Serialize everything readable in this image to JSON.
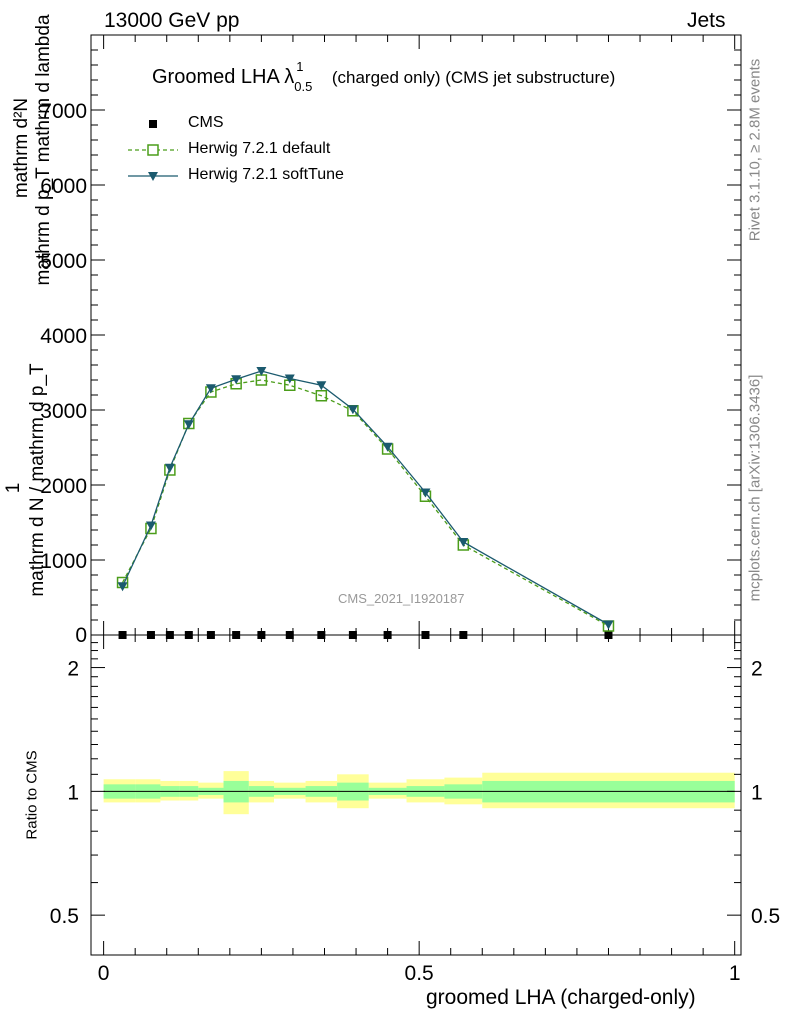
{
  "header": {
    "left": "13000 GeV pp",
    "right": "Jets"
  },
  "side": {
    "rivet": "Rivet 3.1.10, ≥ 2.8M events",
    "mcplots": "mcplots.cern.ch [arXiv:1306.3436]"
  },
  "chart_data": [
    {
      "type": "line",
      "title": "Groomed LHA λ",
      "title_sup": "1",
      "title_sub": "0.5",
      "title_suffix": "(charged only) (CMS jet substructure)",
      "ylabel_numerator": "mathrm d²N",
      "ylabel_denominator": "mathrm d p_T mathrm d lambda",
      "ylabel_front": "1",
      "ylabel_front_denominator": "mathrm d N / mathrm d p_T",
      "watermark": "CMS_2021_I1920187",
      "xlim": [
        -0.02,
        1.01
      ],
      "ylim": [
        0,
        8000
      ],
      "yticks": [
        1000,
        2000,
        3000,
        4000,
        5000,
        6000,
        7000
      ],
      "ytick_labels": [
        "1000",
        "2000",
        "3000",
        "4000",
        "5000",
        "6000",
        "7000"
      ],
      "legend": {
        "position": "top-left",
        "entries": [
          "CMS",
          "Herwig 7.2.1 default",
          "Herwig 7.2.1 softTune"
        ]
      },
      "x": [
        0.03,
        0.075,
        0.105,
        0.135,
        0.17,
        0.21,
        0.25,
        0.295,
        0.345,
        0.395,
        0.45,
        0.51,
        0.57,
        0.8
      ],
      "series": [
        {
          "name": "CMS",
          "color": "#000000",
          "marker": "square",
          "values": [
            0,
            0,
            0,
            0,
            0,
            0,
            0,
            0,
            0,
            0,
            0,
            0,
            0,
            0
          ]
        },
        {
          "name": "Herwig 7.2.1 default",
          "color": "#4b9d1a",
          "marker": "open-square",
          "dashed": true,
          "values": [
            700,
            1420,
            2200,
            2820,
            3240,
            3350,
            3400,
            3330,
            3190,
            2990,
            2480,
            1850,
            1200,
            120
          ]
        },
        {
          "name": "Herwig 7.2.1 softTune",
          "color": "#1b5a6e",
          "marker": "triangle-down",
          "dashed": false,
          "values": [
            650,
            1460,
            2230,
            2810,
            3290,
            3410,
            3520,
            3420,
            3330,
            3010,
            2510,
            1900,
            1240,
            140
          ]
        }
      ]
    },
    {
      "type": "band",
      "ylabel": "Ratio to CMS",
      "xlabel": "groomed LHA (charged-only)",
      "xlim": [
        -0.02,
        1.01
      ],
      "ylim": [
        0.4,
        2.4
      ],
      "yscale": "log",
      "yticks": [
        0.5,
        1,
        2
      ],
      "ytick_labels": [
        "0.5",
        "1",
        "2"
      ],
      "xticks": [
        0,
        0.5,
        1
      ],
      "xtick_labels": [
        "0",
        "0.5",
        "1"
      ],
      "bin_edges": [
        0,
        0.05,
        0.09,
        0.12,
        0.15,
        0.19,
        0.23,
        0.27,
        0.32,
        0.37,
        0.42,
        0.48,
        0.54,
        0.6,
        1.0
      ],
      "stat_band_lo": [
        0.96,
        0.96,
        0.97,
        0.97,
        0.98,
        0.94,
        0.97,
        0.98,
        0.97,
        0.95,
        0.98,
        0.97,
        0.96,
        0.94
      ],
      "stat_band_hi": [
        1.04,
        1.04,
        1.03,
        1.03,
        1.02,
        1.06,
        1.03,
        1.02,
        1.03,
        1.05,
        1.02,
        1.03,
        1.04,
        1.06
      ],
      "syst_band_lo": [
        0.94,
        0.94,
        0.95,
        0.95,
        0.96,
        0.88,
        0.94,
        0.96,
        0.94,
        0.91,
        0.96,
        0.94,
        0.93,
        0.91
      ],
      "syst_band_hi": [
        1.07,
        1.07,
        1.06,
        1.06,
        1.05,
        1.12,
        1.06,
        1.05,
        1.06,
        1.1,
        1.05,
        1.07,
        1.08,
        1.11
      ],
      "band_colors": {
        "syst": "#ffff99",
        "stat": "#99ff99"
      }
    }
  ]
}
